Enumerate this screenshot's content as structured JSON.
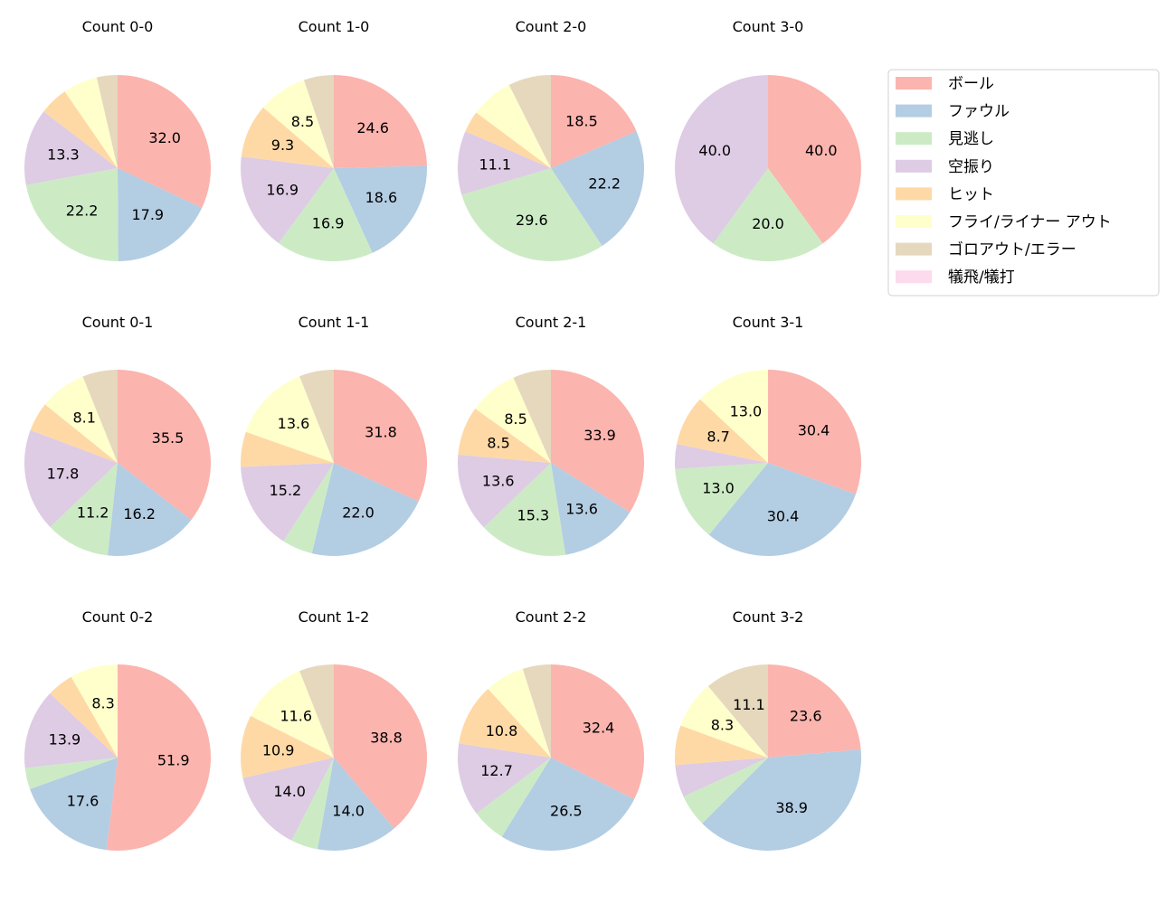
{
  "chart_data": {
    "type": "pie",
    "start_angle": "top",
    "direction": "clockwise",
    "label_format": "percent, one decimal; small slices unlabeled",
    "legend": {
      "placement": "top-right",
      "entries": [
        "ボール",
        "ファウル",
        "見逃し",
        "空振り",
        "ヒット",
        "フライ/ライナー アウト",
        "ゴロアウト/エラー",
        "犠飛/犠打"
      ]
    },
    "colors": [
      "#fbb4ae",
      "#b3cde3",
      "#ccebc5",
      "#decbe4",
      "#fed9a6",
      "#ffffcc",
      "#e5d8bd",
      "#fddaec"
    ],
    "pies": [
      {
        "title": "Count 0-0",
        "values": [
          32.0,
          17.9,
          22.2,
          13.3,
          5.0,
          6.0,
          3.6,
          0
        ],
        "labeled": [
          true,
          true,
          true,
          true,
          false,
          false,
          false,
          false
        ]
      },
      {
        "title": "Count 1-0",
        "values": [
          24.6,
          18.6,
          16.9,
          16.9,
          9.3,
          8.5,
          5.2,
          0
        ],
        "labeled": [
          true,
          true,
          true,
          true,
          true,
          true,
          false,
          false
        ]
      },
      {
        "title": "Count 2-0",
        "values": [
          18.5,
          22.2,
          29.6,
          11.1,
          3.7,
          7.4,
          7.4,
          0
        ],
        "labeled": [
          true,
          true,
          true,
          true,
          false,
          false,
          false,
          false
        ]
      },
      {
        "title": "Count 3-0",
        "values": [
          40.0,
          0,
          20.0,
          40.0,
          0,
          0,
          0,
          0
        ],
        "labeled": [
          true,
          false,
          true,
          true,
          false,
          false,
          false,
          false
        ]
      },
      {
        "title": "Count 0-1",
        "values": [
          35.5,
          16.2,
          11.2,
          17.8,
          5.1,
          8.1,
          6.1,
          0
        ],
        "labeled": [
          true,
          true,
          true,
          true,
          false,
          true,
          false,
          false
        ]
      },
      {
        "title": "Count 1-1",
        "values": [
          31.8,
          22.0,
          5.3,
          15.2,
          6.1,
          13.6,
          6.0,
          0
        ],
        "labeled": [
          true,
          true,
          false,
          true,
          false,
          true,
          false,
          false
        ]
      },
      {
        "title": "Count 2-1",
        "values": [
          33.9,
          13.6,
          15.3,
          13.6,
          8.5,
          8.5,
          6.6,
          0
        ],
        "labeled": [
          true,
          true,
          true,
          true,
          true,
          true,
          false,
          false
        ]
      },
      {
        "title": "Count 3-1",
        "values": [
          30.4,
          30.4,
          13.0,
          4.3,
          8.7,
          13.0,
          0,
          0
        ],
        "labeled": [
          true,
          true,
          true,
          false,
          true,
          true,
          false,
          false
        ]
      },
      {
        "title": "Count 0-2",
        "values": [
          51.9,
          17.6,
          3.7,
          13.9,
          4.6,
          8.3,
          0,
          0
        ],
        "labeled": [
          true,
          true,
          false,
          true,
          false,
          true,
          false,
          false
        ]
      },
      {
        "title": "Count 1-2",
        "values": [
          38.8,
          14.0,
          4.7,
          14.0,
          10.9,
          11.6,
          6.0,
          0
        ],
        "labeled": [
          true,
          true,
          false,
          true,
          true,
          true,
          false,
          false
        ]
      },
      {
        "title": "Count 2-2",
        "values": [
          32.4,
          26.5,
          5.9,
          12.7,
          10.8,
          6.9,
          4.9,
          0
        ],
        "labeled": [
          true,
          true,
          false,
          true,
          true,
          false,
          false,
          false
        ]
      },
      {
        "title": "Count 3-2",
        "values": [
          23.6,
          38.9,
          5.6,
          5.6,
          6.9,
          8.3,
          11.1,
          0
        ],
        "labeled": [
          true,
          true,
          false,
          false,
          false,
          true,
          true,
          false
        ]
      }
    ]
  }
}
